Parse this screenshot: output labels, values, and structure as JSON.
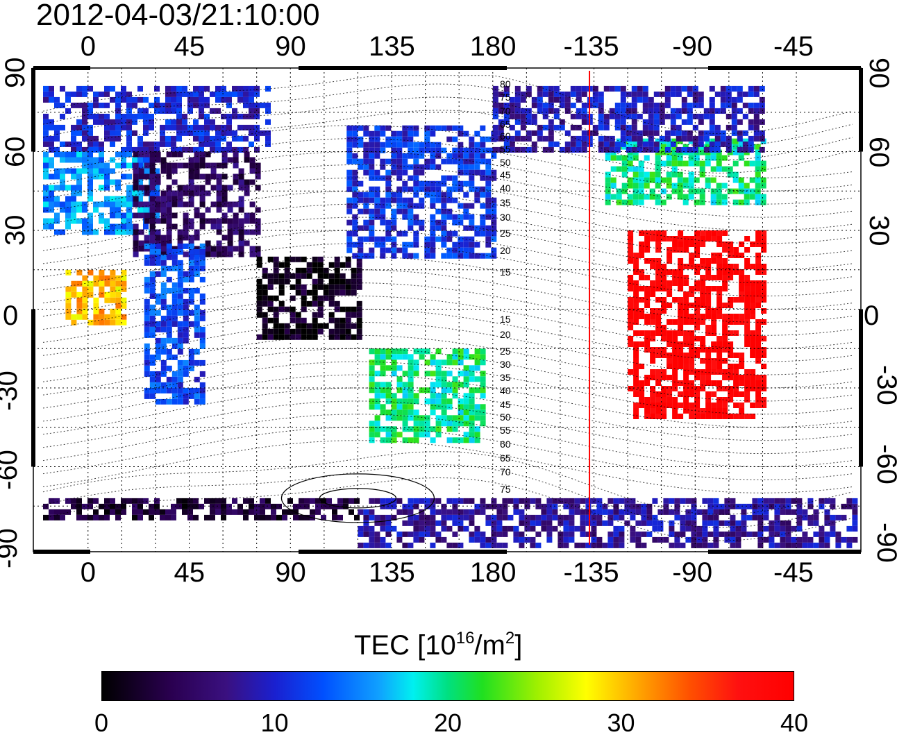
{
  "title": "2012-04-03/21:10:00",
  "map": {
    "lon_ticks": [
      "0",
      "45",
      "90",
      "135",
      "180",
      "-135",
      "-90",
      "-45"
    ],
    "lat_ticks_left": [
      "90",
      "60",
      "30",
      "0",
      "-30",
      "-60",
      "-90"
    ],
    "lat_ticks_right": [
      "90",
      "60",
      "30",
      "0",
      "-30",
      "-60",
      "-90"
    ],
    "terminator_longitude": -137,
    "terminator_color": "#ff0000",
    "magnetic_latitude_labels": [
      "80",
      "75",
      "70",
      "65",
      "60",
      "55",
      "50",
      "45",
      "40",
      "35",
      "30",
      "25",
      "20",
      "15",
      "15",
      "20",
      "25",
      "30",
      "35",
      "40",
      "45",
      "50",
      "55",
      "60",
      "65",
      "70",
      "75"
    ]
  },
  "colorbar": {
    "label_main": "TEC  [10",
    "label_exp1": "16",
    "label_unit": "/m",
    "label_exp2": "2",
    "label_end": "]",
    "ticks": [
      "0",
      "10",
      "20",
      "30",
      "40"
    ],
    "range": [
      0,
      40
    ]
  },
  "chart_data": {
    "type": "heatmap",
    "title": "2012-04-03/21:10:00",
    "x_axis": "longitude",
    "y_axis": "latitude",
    "xlim": [
      -20,
      340
    ],
    "ylim": [
      -90,
      90
    ],
    "value_label": "TEC [10^16/m^2]",
    "vmin": 0,
    "vmax": 40,
    "regions": [
      {
        "lon": [
          -20,
          80
        ],
        "lat": [
          60,
          85
        ],
        "tec": 10
      },
      {
        "lon": [
          -20,
          30
        ],
        "lat": [
          30,
          60
        ],
        "tec": 15
      },
      {
        "lon": [
          20,
          75
        ],
        "lat": [
          20,
          60
        ],
        "tec": 5
      },
      {
        "lon": [
          75,
          120
        ],
        "lat": [
          -10,
          20
        ],
        "tec": 1
      },
      {
        "lon": [
          115,
          180
        ],
        "lat": [
          20,
          70
        ],
        "tec": 11
      },
      {
        "lon": [
          -10,
          15
        ],
        "lat": [
          -5,
          15
        ],
        "tec": 30
      },
      {
        "lon": [
          25,
          50
        ],
        "lat": [
          -35,
          25
        ],
        "tec": 12
      },
      {
        "lon": [
          125,
          175
        ],
        "lat": [
          -50,
          -15
        ],
        "tec": 20
      },
      {
        "lon": [
          -130,
          -60
        ],
        "lat": [
          40,
          65
        ],
        "tec": 20
      },
      {
        "lon": [
          -120,
          -60
        ],
        "lat": [
          -40,
          30
        ],
        "tec": 40
      },
      {
        "lon": [
          -180,
          -60
        ],
        "lat": [
          60,
          85
        ],
        "tec": 9
      },
      {
        "lon": [
          120,
          340
        ],
        "lat": [
          -90,
          -72
        ],
        "tec": 8
      },
      {
        "lon": [
          -20,
          120
        ],
        "lat": [
          -80,
          -72
        ],
        "tec": 3
      }
    ]
  }
}
